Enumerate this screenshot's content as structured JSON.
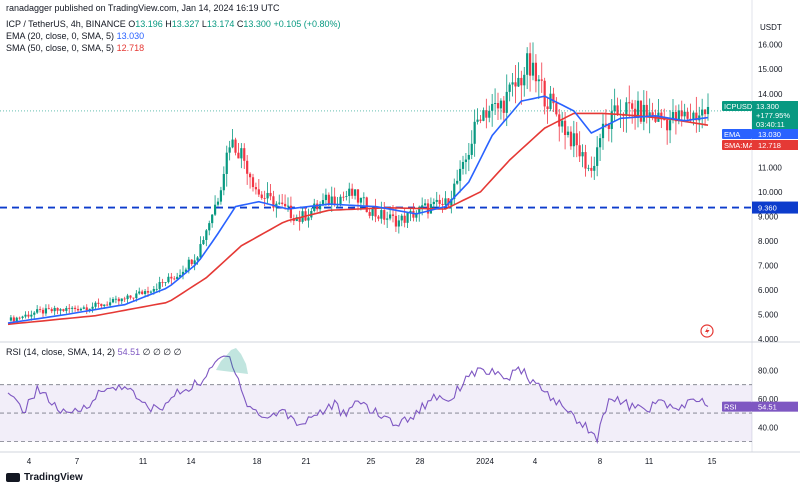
{
  "header": {
    "published_by": "ranadagger published on TradingView.com, Jan 14, 2024 16:19 UTC",
    "symbol_line": "ICP / TetherUS, 4h, BINANCE",
    "o_label": "O",
    "o": "13.196",
    "h_label": "H",
    "h": "13.327",
    "l_label": "L",
    "l": "13.174",
    "c_label": "C",
    "c": "13.300",
    "chg": "+0.105 (+0.80%)",
    "ema_label": "EMA (20, close, 0, SMA, 5)",
    "ema_val": "13.030",
    "sma_label": "SMA (50, close, 0, SMA, 5)",
    "sma_val": "12.718",
    "rsi_label": "RSI (14, close, SMA, 14, 2)",
    "rsi_val": "54.51",
    "rsi_extra": "∅ ∅ ∅ ∅"
  },
  "axis": {
    "currency": "USDT"
  },
  "tags": {
    "symbol": "ICPUSDT",
    "price": "13.300",
    "change": "+177.95%",
    "countdown": "03:40:11",
    "ema": "EMA",
    "ema_val": "13.030",
    "sma": "SMA:MA",
    "sma_val": "12.718",
    "hline": "9.360",
    "rsi": "RSI",
    "rsi_val": "54.51"
  },
  "footer": {
    "brand": "TradingView"
  },
  "colors": {
    "up": "#089981",
    "down": "#f23645",
    "ema": "#2962ff",
    "sma": "#e53935",
    "rsi": "#7e57c2",
    "hline": "#0d3ccc"
  },
  "chart_data": {
    "type": "candlestick",
    "price_ylim": [
      4.0,
      16.6
    ],
    "price_ticks": [
      "16.000",
      "15.000",
      "14.000",
      "13.000",
      "12.000",
      "11.000",
      "10.000",
      "9.000",
      "8.000",
      "7.000",
      "6.000",
      "5.000",
      "4.000"
    ],
    "rsi_ylim": [
      24,
      93
    ],
    "rsi_ticks": [
      "80.00",
      "60.00",
      "40.00"
    ],
    "rsi_bands": [
      70,
      50,
      30
    ],
    "horizontal_line": 9.36,
    "x_labels": [
      "4",
      "7",
      "11",
      "14",
      "18",
      "21",
      "25",
      "28",
      "2024",
      "4",
      "8",
      "11",
      "15"
    ],
    "price_key": [
      [
        0,
        4.75
      ],
      [
        10,
        5.1
      ],
      [
        20,
        5.2
      ],
      [
        30,
        5.35
      ],
      [
        40,
        5.6
      ],
      [
        50,
        6.1
      ],
      [
        58,
        6.6
      ],
      [
        65,
        7.5
      ],
      [
        72,
        9.8
      ],
      [
        76,
        12.1
      ],
      [
        80,
        11.6
      ],
      [
        86,
        9.9
      ],
      [
        92,
        9.5
      ],
      [
        100,
        8.9
      ],
      [
        110,
        9.7
      ],
      [
        118,
        9.9
      ],
      [
        126,
        9.1
      ],
      [
        134,
        8.8
      ],
      [
        142,
        9.3
      ],
      [
        150,
        9.5
      ],
      [
        156,
        10.9
      ],
      [
        162,
        13.3
      ],
      [
        168,
        13.4
      ],
      [
        174,
        14.3
      ],
      [
        178,
        15.1
      ],
      [
        184,
        14.0
      ],
      [
        192,
        12.4
      ],
      [
        200,
        10.8
      ],
      [
        203,
        12.3
      ],
      [
        210,
        13.4
      ],
      [
        218,
        13.2
      ],
      [
        226,
        12.9
      ],
      [
        234,
        13.1
      ],
      [
        240,
        13.3
      ]
    ],
    "ema_key": [
      [
        0,
        4.65
      ],
      [
        20,
        5.0
      ],
      [
        40,
        5.4
      ],
      [
        55,
        6.1
      ],
      [
        65,
        7.1
      ],
      [
        72,
        8.3
      ],
      [
        78,
        9.4
      ],
      [
        86,
        9.6
      ],
      [
        96,
        9.3
      ],
      [
        110,
        9.5
      ],
      [
        126,
        9.4
      ],
      [
        140,
        9.1
      ],
      [
        150,
        9.4
      ],
      [
        158,
        10.4
      ],
      [
        166,
        12.3
      ],
      [
        176,
        13.7
      ],
      [
        184,
        13.9
      ],
      [
        194,
        13.3
      ],
      [
        200,
        12.4
      ],
      [
        210,
        13.0
      ],
      [
        222,
        13.1
      ],
      [
        232,
        12.9
      ],
      [
        240,
        13.03
      ]
    ],
    "sma_key": [
      [
        0,
        4.6
      ],
      [
        30,
        4.95
      ],
      [
        55,
        5.5
      ],
      [
        68,
        6.5
      ],
      [
        80,
        7.8
      ],
      [
        95,
        8.8
      ],
      [
        110,
        9.25
      ],
      [
        130,
        9.35
      ],
      [
        150,
        9.3
      ],
      [
        162,
        10.0
      ],
      [
        172,
        11.3
      ],
      [
        184,
        12.6
      ],
      [
        194,
        13.2
      ],
      [
        204,
        13.2
      ],
      [
        216,
        13.1
      ],
      [
        228,
        12.95
      ],
      [
        240,
        12.72
      ]
    ],
    "rsi_key": [
      [
        0,
        62
      ],
      [
        6,
        52
      ],
      [
        10,
        68
      ],
      [
        16,
        55
      ],
      [
        20,
        48
      ],
      [
        26,
        54
      ],
      [
        32,
        65
      ],
      [
        40,
        70
      ],
      [
        46,
        56
      ],
      [
        52,
        52
      ],
      [
        58,
        64
      ],
      [
        64,
        70
      ],
      [
        68,
        75
      ],
      [
        72,
        88
      ],
      [
        76,
        90
      ],
      [
        78,
        80
      ],
      [
        82,
        56
      ],
      [
        88,
        46
      ],
      [
        94,
        52
      ],
      [
        100,
        42
      ],
      [
        106,
        50
      ],
      [
        112,
        56
      ],
      [
        116,
        47
      ],
      [
        120,
        60
      ],
      [
        126,
        50
      ],
      [
        134,
        42
      ],
      [
        140,
        50
      ],
      [
        146,
        62
      ],
      [
        152,
        60
      ],
      [
        158,
        78
      ],
      [
        164,
        80
      ],
      [
        170,
        74
      ],
      [
        176,
        80
      ],
      [
        182,
        68
      ],
      [
        188,
        58
      ],
      [
        196,
        44
      ],
      [
        200,
        38
      ],
      [
        202,
        31
      ],
      [
        206,
        62
      ],
      [
        212,
        56
      ],
      [
        218,
        52
      ],
      [
        224,
        58
      ],
      [
        230,
        52
      ],
      [
        236,
        60
      ],
      [
        240,
        54.51
      ]
    ]
  }
}
